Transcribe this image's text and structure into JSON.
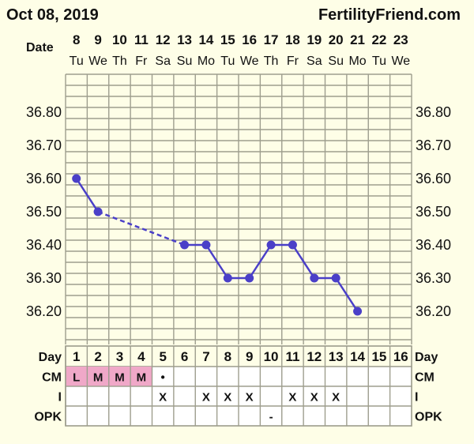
{
  "header": {
    "date": "Oct 08, 2019",
    "site": "FertilityFriend.com"
  },
  "labels": {
    "date": "Date",
    "day": "Day",
    "cm": "CM",
    "intercourse": "I",
    "opk": "OPK"
  },
  "dates": [
    "8",
    "9",
    "10",
    "11",
    "12",
    "13",
    "14",
    "15",
    "16",
    "17",
    "18",
    "19",
    "20",
    "21",
    "22",
    "23"
  ],
  "weekdays": [
    "Tu",
    "We",
    "Th",
    "Fr",
    "Sa",
    "Su",
    "Mo",
    "Tu",
    "We",
    "Th",
    "Fr",
    "Sa",
    "Su",
    "Mo",
    "Tu",
    "We"
  ],
  "day_numbers": [
    "1",
    "2",
    "3",
    "4",
    "5",
    "6",
    "7",
    "8",
    "9",
    "10",
    "11",
    "12",
    "13",
    "14",
    "15",
    "16"
  ],
  "y_tick_labels": [
    "36.80",
    "36.70",
    "36.60",
    "36.50",
    "36.40",
    "36.30",
    "36.20"
  ],
  "cm": [
    "L",
    "M",
    "M",
    "M",
    "•",
    "",
    "",
    "",
    "",
    "",
    "",
    "",
    "",
    "",
    "",
    ""
  ],
  "cm_highlight": [
    true,
    true,
    true,
    true,
    false,
    false,
    false,
    false,
    false,
    false,
    false,
    false,
    false,
    false,
    false,
    false
  ],
  "intercourse": [
    "",
    "",
    "",
    "",
    "X",
    "",
    "X",
    "X",
    "X",
    "",
    "X",
    "X",
    "X",
    "",
    "",
    ""
  ],
  "opk": [
    "",
    "",
    "",
    "",
    "",
    "",
    "",
    "",
    "",
    "-",
    "",
    "",
    "",
    "",
    "",
    ""
  ],
  "colors": {
    "line": "#4a3fc8",
    "grid": "#9e9e8e",
    "background": "#fefee7",
    "highlight": "#f0a8c8"
  },
  "chart_data": {
    "type": "line",
    "xlabel": "Day",
    "x": [
      1,
      2,
      3,
      4,
      5,
      6,
      7,
      8,
      9,
      10,
      11,
      12,
      13,
      14,
      15,
      16
    ],
    "series": [
      {
        "values": [
          36.6,
          36.5,
          null,
          null,
          null,
          36.4,
          36.4,
          36.3,
          36.3,
          36.4,
          36.4,
          36.3,
          36.3,
          36.2,
          null,
          null
        ]
      }
    ],
    "ylim": [
      36.15,
      36.9
    ],
    "yticks": [
      36.8,
      36.7,
      36.6,
      36.5,
      36.4,
      36.3,
      36.2
    ],
    "grid": true,
    "dashed_gap": {
      "from_day": 2,
      "to_day": 6
    }
  }
}
